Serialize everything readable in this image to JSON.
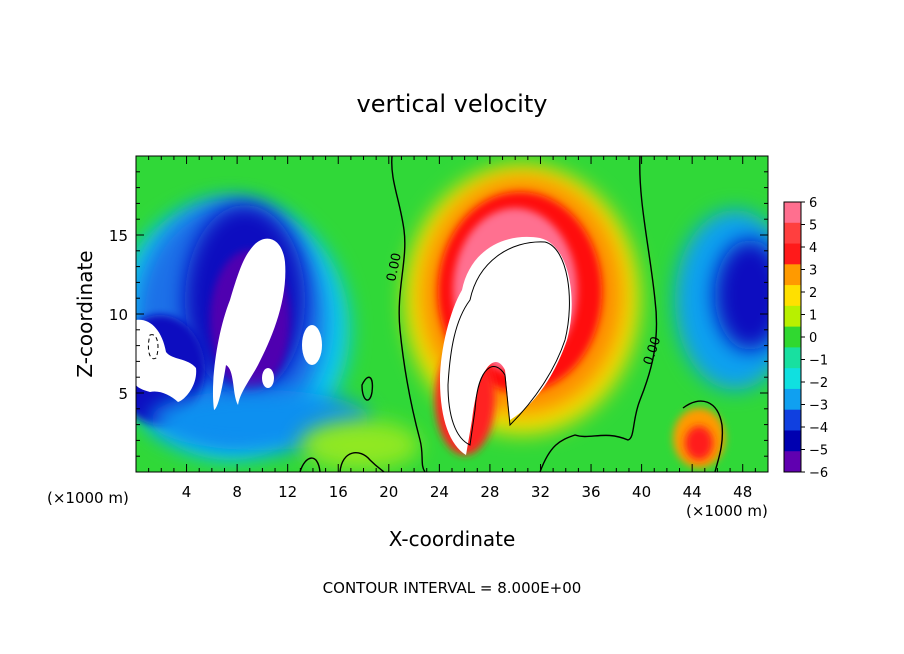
{
  "chart_data": {
    "type": "heatmap",
    "title": "vertical velocity",
    "xlabel": "X-coordinate",
    "ylabel": "Z-coordinate",
    "x_unit_label_left": "(×1000 m)",
    "x_unit_label_right": "(×1000 m)",
    "footer": "CONTOUR INTERVAL = 8.000E+00",
    "xlim": [
      0,
      50
    ],
    "ylim": [
      0,
      20
    ],
    "x_ticks": [
      "4",
      "8",
      "12",
      "16",
      "20",
      "24",
      "28",
      "32",
      "36",
      "40",
      "44",
      "48"
    ],
    "y_ticks": [
      "5",
      "10",
      "15"
    ],
    "contour_labels": [
      {
        "text": "0.00",
        "x": 20.5,
        "y": 13.0
      },
      {
        "text": "0.00",
        "x": 41.2,
        "y": 7.5
      }
    ],
    "colorbar": {
      "levels": [
        "6",
        "5",
        "4",
        "3",
        "2",
        "1",
        "0",
        "−1",
        "−2",
        "−3",
        "−4",
        "−5",
        "−6"
      ],
      "colors": [
        "#ff6f8f",
        "#ff3f3f",
        "#ff1a1a",
        "#ff9a00",
        "#ffe000",
        "#b8f000",
        "#30d830",
        "#18e0a0",
        "#10e0e0",
        "#10a0f0",
        "#1040e0",
        "#0000b0",
        "#6000b0"
      ]
    },
    "features": [
      {
        "kind": "updraft-core",
        "x": 30.0,
        "z": 11.0,
        "w": ">6"
      },
      {
        "kind": "downdraft-core",
        "x": 9.5,
        "z": 10.5,
        "w": "<-6"
      },
      {
        "kind": "downdraft-core",
        "x": 2.5,
        "z": 6.5,
        "w": "<-6"
      },
      {
        "kind": "downdraft",
        "x": 47.5,
        "z": 11.0,
        "w": -5
      },
      {
        "kind": "updraft",
        "x": 44.2,
        "z": 2.0,
        "w": 5
      }
    ]
  }
}
